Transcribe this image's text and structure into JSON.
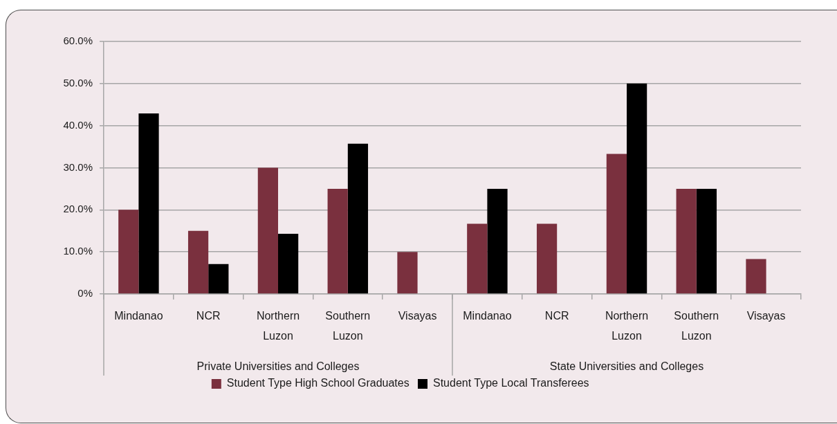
{
  "chart_data": {
    "type": "bar",
    "categories": [
      "Mindanao",
      "NCR",
      "Northern Luzon",
      "Southern Luzon",
      "Visayas",
      "Mindanao",
      "NCR",
      "Northern Luzon",
      "Southern Luzon",
      "Visayas"
    ],
    "series": [
      {
        "name": "Student Type High School Graduates",
        "color": "#7a303e",
        "values": [
          20,
          15,
          30,
          25,
          10,
          16.7,
          16.7,
          33.3,
          25,
          8.3
        ]
      },
      {
        "name": "Student Type Local Transferees",
        "color": "#000000",
        "values": [
          42.9,
          7.1,
          14.3,
          35.7,
          null,
          25,
          null,
          50,
          25,
          null
        ]
      }
    ],
    "ylim": [
      0,
      60
    ],
    "yticks": [
      {
        "value": 0,
        "label": "0%"
      },
      {
        "value": 10,
        "label": "10.0%"
      },
      {
        "value": 20,
        "label": "20.0%"
      },
      {
        "value": 30,
        "label": "30.0%"
      },
      {
        "value": 40,
        "label": "40.0%"
      },
      {
        "value": 50,
        "label": "50.0%"
      },
      {
        "value": 60,
        "label": "60.0%"
      }
    ],
    "grid": "y",
    "legend": "bottom",
    "annotations": [
      "Private Universities and Colleges",
      "State Universities and Colleges"
    ]
  }
}
